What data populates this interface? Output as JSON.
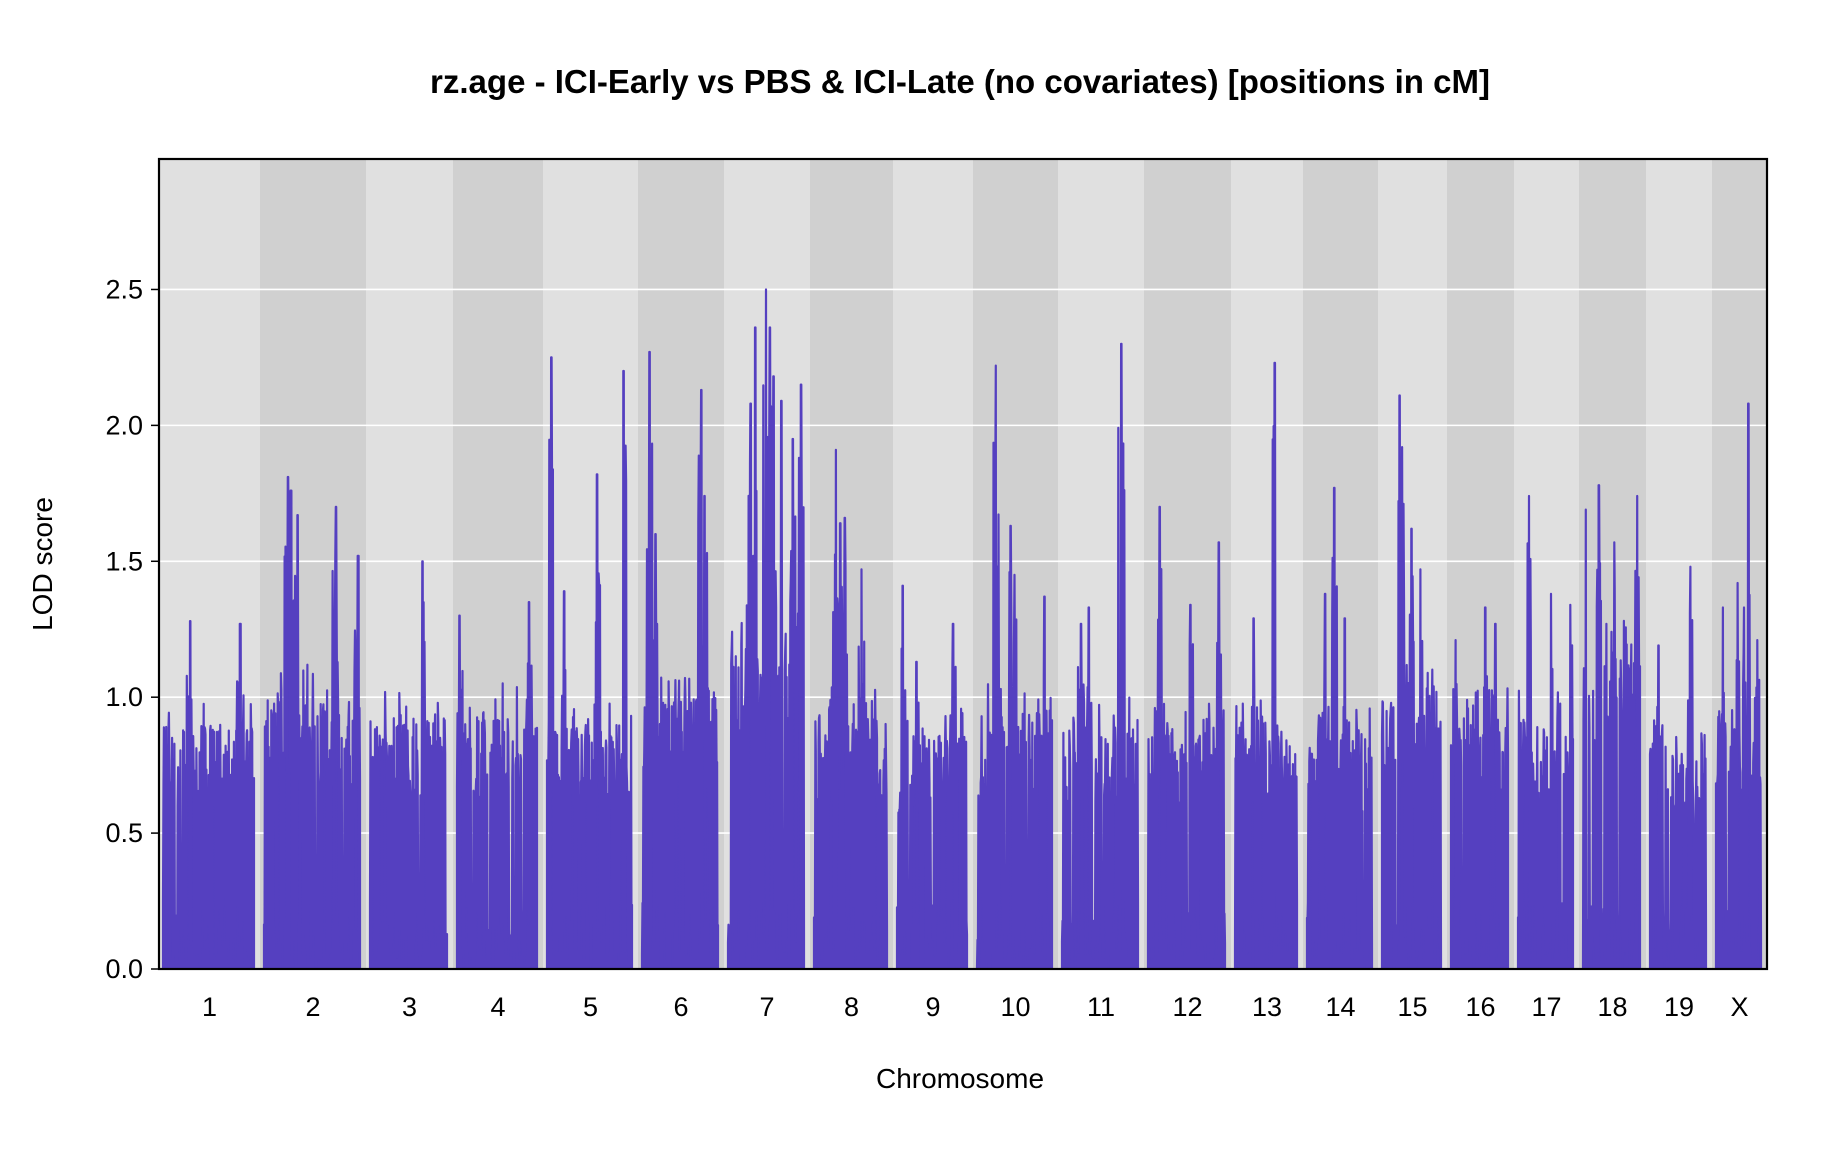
{
  "chart_data": {
    "type": "line",
    "title": "rz.age - ICI-Early vs PBS & ICI-Late (no covariates) [positions in cM]",
    "xlabel": "Chromosome",
    "ylabel": "LOD score",
    "ylim": [
      0,
      2.98
    ],
    "yticks": [
      0.0,
      0.5,
      1.0,
      1.5,
      2.0,
      2.5
    ],
    "ytick_labels": [
      "0.0",
      "0.5",
      "1.0",
      "1.5",
      "2.0",
      "2.5"
    ],
    "grid": "horizontal",
    "series_color": "#5540C0",
    "panel_colors": [
      "#E0E0E0",
      "#D0D0D0"
    ],
    "chromosomes": [
      {
        "name": "1",
        "max_lod": 1.28,
        "base_lod": 0.85,
        "peaks": [
          [
            0.3,
            1.28
          ],
          [
            0.85,
            1.27
          ]
        ]
      },
      {
        "name": "2",
        "max_lod": 1.81,
        "base_lod": 0.95,
        "peaks": [
          [
            0.25,
            1.81
          ],
          [
            0.28,
            1.76
          ],
          [
            0.35,
            1.67
          ],
          [
            0.75,
            1.7
          ],
          [
            0.98,
            1.52
          ]
        ]
      },
      {
        "name": "3",
        "max_lod": 1.5,
        "base_lod": 0.88,
        "peaks": [
          [
            0.68,
            1.5
          ]
        ]
      },
      {
        "name": "4",
        "max_lod": 1.35,
        "base_lod": 0.9,
        "peaks": [
          [
            0.03,
            1.3
          ],
          [
            0.9,
            1.35
          ]
        ]
      },
      {
        "name": "5",
        "max_lod": 2.25,
        "base_lod": 0.85,
        "peaks": [
          [
            0.05,
            2.25
          ],
          [
            0.2,
            1.39
          ],
          [
            0.59,
            1.82
          ],
          [
            0.9,
            2.2
          ]
        ]
      },
      {
        "name": "6",
        "max_lod": 2.27,
        "base_lod": 0.95,
        "peaks": [
          [
            0.1,
            2.27
          ],
          [
            0.18,
            1.6
          ],
          [
            0.78,
            2.13
          ],
          [
            0.82,
            1.74
          ]
        ]
      },
      {
        "name": "7",
        "max_lod": 2.5,
        "base_lod": 1.15,
        "peaks": [
          [
            0.3,
            2.08
          ],
          [
            0.36,
            2.36
          ],
          [
            0.5,
            2.5
          ],
          [
            0.55,
            2.36
          ],
          [
            0.6,
            2.18
          ],
          [
            0.7,
            2.09
          ],
          [
            0.85,
            1.95
          ],
          [
            0.96,
            2.15
          ]
        ]
      },
      {
        "name": "8",
        "max_lod": 1.91,
        "base_lod": 0.88,
        "peaks": [
          [
            0.3,
            1.91
          ],
          [
            0.36,
            1.64
          ],
          [
            0.42,
            1.66
          ],
          [
            0.65,
            1.47
          ]
        ]
      },
      {
        "name": "9",
        "max_lod": 1.41,
        "base_lod": 0.82,
        "peaks": [
          [
            0.08,
            1.41
          ],
          [
            0.28,
            1.13
          ],
          [
            0.8,
            1.27
          ]
        ]
      },
      {
        "name": "10",
        "max_lod": 2.22,
        "base_lod": 0.9,
        "peaks": [
          [
            0.25,
            2.22
          ],
          [
            0.45,
            1.63
          ],
          [
            0.5,
            1.45
          ],
          [
            0.9,
            1.37
          ]
        ]
      },
      {
        "name": "11",
        "max_lod": 2.3,
        "base_lod": 0.85,
        "peaks": [
          [
            0.25,
            1.27
          ],
          [
            0.35,
            1.33
          ],
          [
            0.78,
            2.3
          ]
        ]
      },
      {
        "name": "12",
        "max_lod": 1.7,
        "base_lod": 0.85,
        "peaks": [
          [
            0.15,
            1.7
          ],
          [
            0.55,
            1.34
          ],
          [
            0.92,
            1.57
          ]
        ]
      },
      {
        "name": "13",
        "max_lod": 2.23,
        "base_lod": 0.87,
        "peaks": [
          [
            0.3,
            1.29
          ],
          [
            0.64,
            2.23
          ]
        ]
      },
      {
        "name": "14",
        "max_lod": 1.77,
        "base_lod": 0.82,
        "peaks": [
          [
            0.28,
            1.38
          ],
          [
            0.42,
            1.77
          ],
          [
            0.58,
            1.29
          ]
        ]
      },
      {
        "name": "15",
        "max_lod": 2.11,
        "base_lod": 0.95,
        "peaks": [
          [
            0.3,
            2.11
          ],
          [
            0.34,
            1.92
          ],
          [
            0.5,
            1.62
          ],
          [
            0.65,
            1.47
          ]
        ]
      },
      {
        "name": "16",
        "max_lod": 1.33,
        "base_lod": 0.88,
        "peaks": [
          [
            0.08,
            1.21
          ],
          [
            0.6,
            1.33
          ],
          [
            0.78,
            1.27
          ]
        ]
      },
      {
        "name": "17",
        "max_lod": 1.74,
        "base_lod": 0.88,
        "peaks": [
          [
            0.2,
            1.74
          ],
          [
            0.6,
            1.38
          ],
          [
            0.95,
            1.34
          ]
        ]
      },
      {
        "name": "18",
        "max_lod": 1.78,
        "base_lod": 1.1,
        "peaks": [
          [
            0.05,
            1.69
          ],
          [
            0.28,
            1.78
          ],
          [
            0.55,
            1.57
          ],
          [
            0.95,
            1.74
          ]
        ]
      },
      {
        "name": "19",
        "max_lod": 1.48,
        "base_lod": 0.78,
        "peaks": [
          [
            0.15,
            1.19
          ],
          [
            0.72,
            1.48
          ]
        ]
      },
      {
        "name": "X",
        "max_lod": 2.08,
        "base_lod": 0.85,
        "peaks": [
          [
            0.15,
            1.33
          ],
          [
            0.48,
            1.42
          ],
          [
            0.62,
            1.33
          ],
          [
            0.72,
            2.08
          ],
          [
            0.92,
            1.21
          ]
        ]
      }
    ]
  }
}
